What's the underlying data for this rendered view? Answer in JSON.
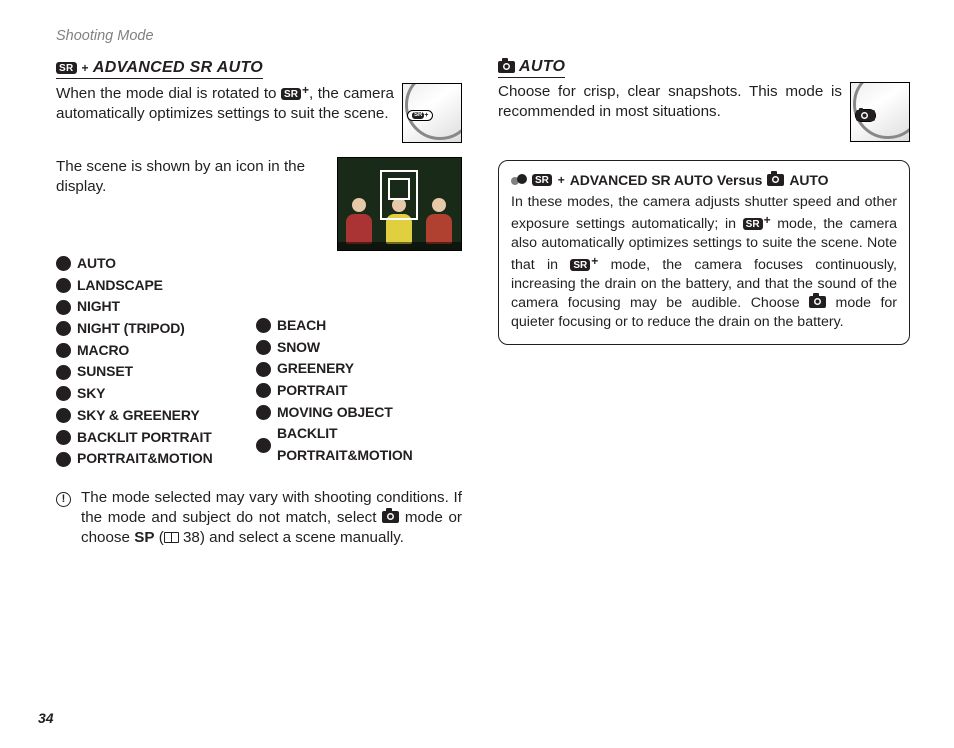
{
  "running_head": "Shooting Mode",
  "page_number": "34",
  "left": {
    "title": "ADVANCED SR AUTO",
    "sr_label": "SR",
    "intro_a": "When the mode dial is rotated to ",
    "intro_b": ", the camera automatically optimizes settings to suit the scene.",
    "scene_lead": "The scene is shown by an icon in the display.",
    "scenes_a": [
      "AUTO",
      "LANDSCAPE",
      "NIGHT",
      "NIGHT (TRIPOD)",
      "MACRO",
      "SUNSET",
      "SKY",
      "SKY & GREENERY",
      "BACKLIT PORTRAIT",
      "PORTRAIT&MOTION"
    ],
    "scenes_b": [
      "BEACH",
      "SNOW",
      "GREENERY",
      "PORTRAIT",
      "MOVING OBJECT",
      "BACKLIT PORTRAIT&MOTION"
    ],
    "note": {
      "pre": "The mode selected may vary with shooting conditions.  If the mode and subject do not match, select ",
      "mid": " mode or choose ",
      "sp": "SP",
      "ref": " 38) and select a scene manually.",
      "paren": " ("
    }
  },
  "right": {
    "title": "AUTO",
    "body": "Choose for crisp, clear snapshots.  This mode is recommended in most situations.",
    "callout": {
      "title_mid": "ADVANCED SR AUTO Versus",
      "title_end": "AUTO",
      "t1": "In these modes, the camera adjusts shutter speed and other exposure settings automatically; in ",
      "t2": " mode, the camera also automatically optimizes settings to suite the scene. Note that in ",
      "t3": " mode, the camera focuses continuously, increasing the drain on the battery, and that the sound of the camera focusing may be audible. Choose ",
      "t4": " mode for quieter focusing or to reduce the drain on the battery."
    }
  },
  "dial_center": "SR⁺"
}
